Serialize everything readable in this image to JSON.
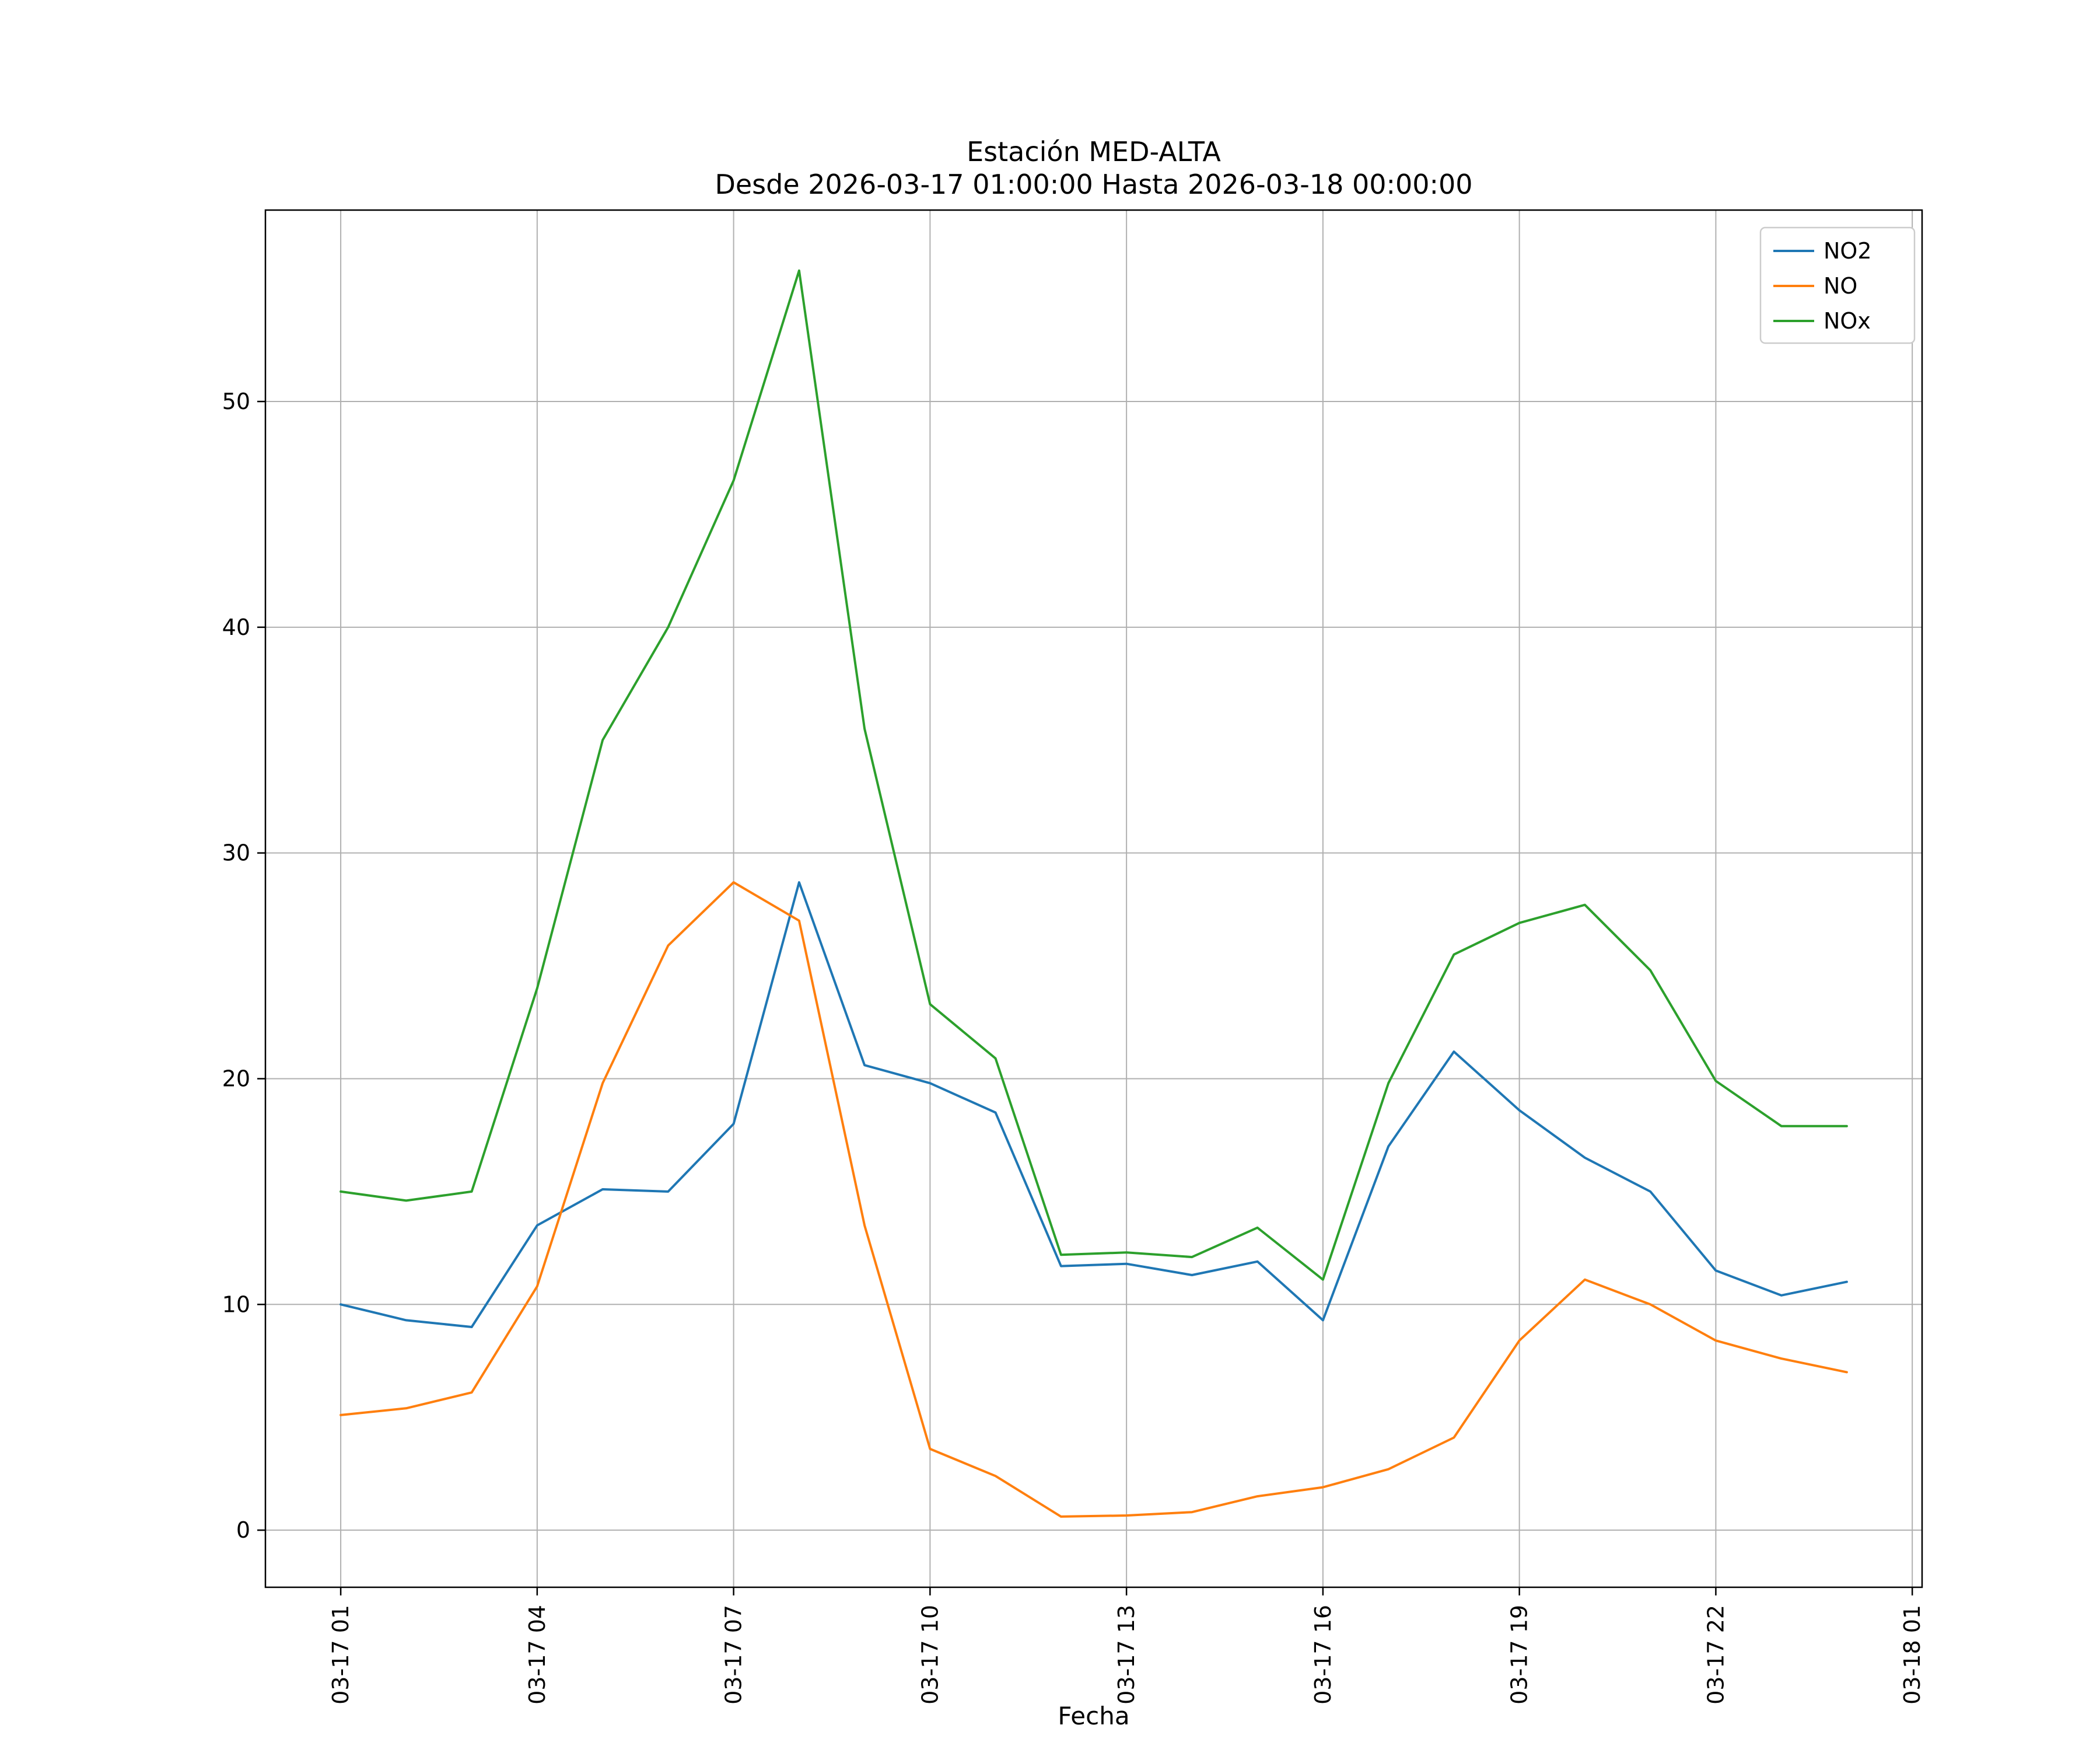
{
  "chart_data": {
    "type": "line",
    "title": "Estación MED-ALTA",
    "subtitle": "Desde 2026-03-17 01:00:00 Hasta 2026-03-18 00:00:00",
    "xlabel": "Fecha",
    "ylabel": "",
    "x_hours": [
      1,
      2,
      3,
      4,
      5,
      6,
      7,
      8,
      9,
      10,
      11,
      12,
      13,
      14,
      15,
      16,
      17,
      18,
      19,
      20,
      21,
      22,
      23,
      24
    ],
    "series": [
      {
        "name": "NO2",
        "color": "#1f77b4",
        "values": [
          10.0,
          9.3,
          9.0,
          13.5,
          15.1,
          15.0,
          18.0,
          28.7,
          20.6,
          19.8,
          18.5,
          11.7,
          11.8,
          11.3,
          11.9,
          9.3,
          17.0,
          21.2,
          18.6,
          16.5,
          15.0,
          11.5,
          10.4,
          11.0
        ]
      },
      {
        "name": "NO",
        "color": "#ff7f0e",
        "values": [
          5.1,
          5.4,
          6.1,
          10.8,
          19.8,
          25.9,
          28.7,
          27.0,
          13.5,
          3.6,
          2.4,
          0.6,
          0.65,
          0.8,
          1.5,
          1.9,
          2.7,
          4.1,
          8.4,
          11.1,
          10.0,
          8.4,
          7.6,
          7.0
        ]
      },
      {
        "name": "NOx",
        "color": "#2ca02c",
        "values": [
          15.0,
          14.6,
          15.0,
          24.0,
          35.0,
          40.0,
          46.5,
          55.8,
          35.5,
          23.3,
          20.9,
          12.2,
          12.3,
          12.1,
          13.4,
          11.1,
          19.8,
          25.5,
          26.9,
          27.7,
          24.8,
          19.9,
          17.9,
          17.9
        ]
      }
    ],
    "xticks": {
      "positions": [
        1,
        4,
        7,
        10,
        13,
        16,
        19,
        22,
        25
      ],
      "labels": [
        "03-17 01",
        "03-17 04",
        "03-17 07",
        "03-17 10",
        "03-17 13",
        "03-17 16",
        "03-17 19",
        "03-17 22",
        "03-18 01"
      ]
    },
    "yticks": [
      0,
      10,
      20,
      30,
      40,
      50
    ],
    "xlim": [
      -0.15,
      25.15
    ],
    "ylim": [
      -2.53,
      58.48
    ],
    "grid": true,
    "grid_color": "#b0b0b0",
    "legend_position": "upper right",
    "legend_border_color": "#cccccc",
    "background": "#ffffff"
  }
}
